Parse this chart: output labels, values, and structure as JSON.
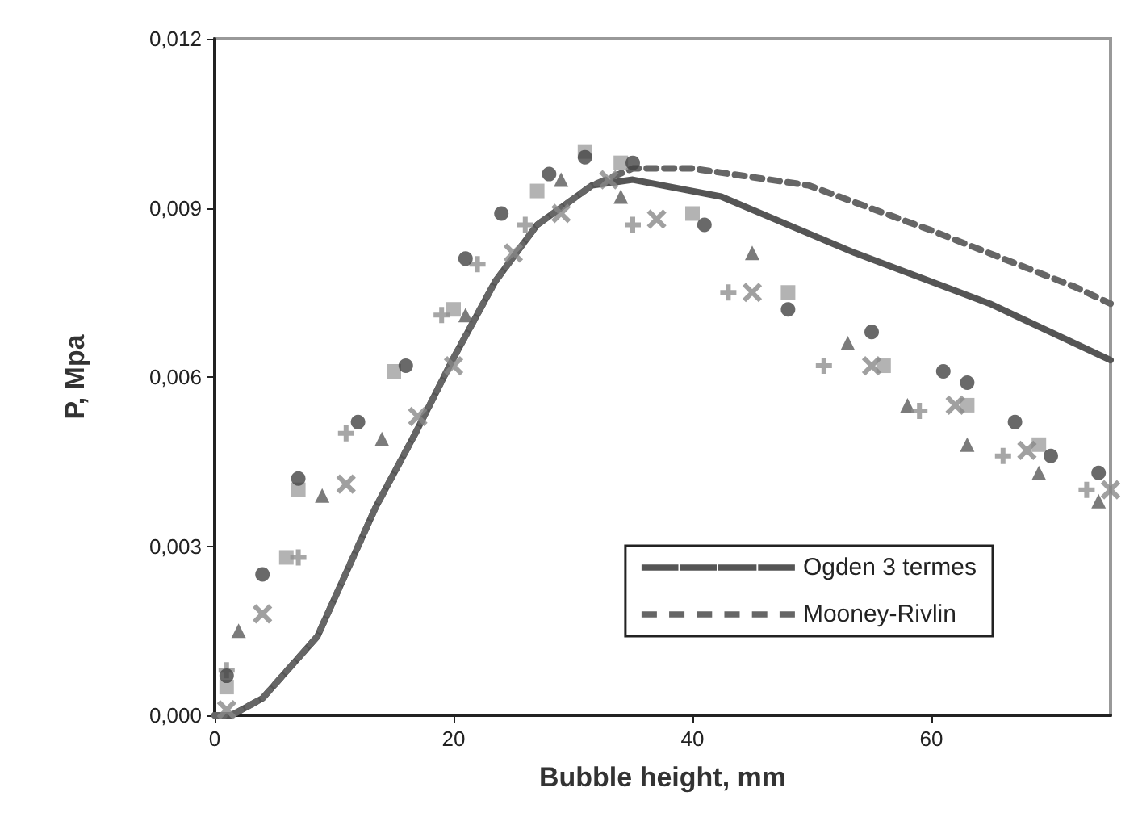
{
  "chart_data": {
    "type": "line",
    "xlabel": "Bubble height, mm",
    "ylabel": "P, Mpa",
    "xlim": [
      0,
      75
    ],
    "xticks": [
      0,
      20,
      40,
      60
    ],
    "ylim": [
      0,
      0.012
    ],
    "yticks": [
      {
        "value": 0,
        "label": "0,000"
      },
      {
        "value": 0.003,
        "label": "0,003"
      },
      {
        "value": 0.006,
        "label": "0,006"
      },
      {
        "value": 0.009,
        "label": "0,009"
      },
      {
        "value": 0.012,
        "label": "0,012"
      }
    ],
    "grid": false,
    "legend": "bottom right",
    "series": [
      {
        "name": "Ogden 3 termes",
        "line_style": "solid",
        "marker": "none",
        "color": "#555555",
        "x": [
          0,
          1.4,
          4,
          8.6,
          13.5,
          16.8,
          19.9,
          23.5,
          27,
          31.6,
          35,
          42.4,
          53.6,
          64.9,
          75
        ],
        "values": [
          0,
          0,
          0.0003,
          0.0014,
          0.0037,
          0.005,
          0.0063,
          0.0077,
          0.0087,
          0.0094,
          0.0095,
          0.0092,
          0.0082,
          0.0073,
          0.0063
        ]
      },
      {
        "name": "Mooney-Rivlin",
        "line_style": "dashed",
        "marker": "none",
        "color": "#666666",
        "x": [
          0,
          1.4,
          4,
          8.6,
          13.5,
          16.8,
          19.9,
          23.5,
          27,
          31.6,
          35,
          40,
          49.7,
          60,
          72,
          75
        ],
        "values": [
          0,
          0,
          0.0003,
          0.0014,
          0.0037,
          0.005,
          0.0063,
          0.0077,
          0.0087,
          0.0094,
          0.0097,
          0.0097,
          0.0094,
          0.0086,
          0.0076,
          0.0073
        ]
      },
      {
        "type": "scatter",
        "marker": "circle",
        "color": "#444444",
        "x": [
          1,
          4,
          7,
          12,
          16,
          21,
          24,
          28,
          31,
          35,
          41,
          48,
          55,
          61,
          63,
          67,
          70,
          74
        ],
        "values": [
          0.0007,
          0.0025,
          0.0042,
          0.0052,
          0.0062,
          0.0081,
          0.0089,
          0.0096,
          0.0099,
          0.0098,
          0.0087,
          0.0072,
          0.0068,
          0.0061,
          0.0059,
          0.0052,
          0.0046,
          0.0043
        ]
      },
      {
        "type": "scatter",
        "marker": "square",
        "color": "#a0a0a0",
        "x": [
          1,
          6,
          7,
          15,
          20,
          27,
          31,
          34,
          40,
          48,
          56,
          63,
          69
        ],
        "values": [
          0.0005,
          0.0028,
          0.004,
          0.0061,
          0.0072,
          0.0093,
          0.01,
          0.0098,
          0.0089,
          0.0075,
          0.0062,
          0.0055,
          0.0048
        ]
      },
      {
        "type": "scatter",
        "marker": "cross",
        "color": "#909090",
        "x": [
          1,
          7,
          11,
          19,
          22,
          26,
          35,
          43,
          51,
          59,
          66,
          73
        ],
        "values": [
          0.0008,
          0.0028,
          0.005,
          0.0071,
          0.008,
          0.0087,
          0.0087,
          0.0075,
          0.0062,
          0.0054,
          0.0046,
          0.004
        ]
      },
      {
        "type": "scatter",
        "color": "#888888",
        "x": [
          1,
          4,
          11,
          17,
          20,
          25,
          29,
          33,
          37,
          45,
          55,
          62,
          68,
          75
        ],
        "values": [
          0.0001,
          0.0018,
          0.0041,
          0.0053,
          0.0062,
          0.0082,
          0.0089,
          0.0095,
          0.0088,
          0.0075,
          0.0062,
          0.0055,
          0.0047,
          0.004
        ]
      },
      {
        "type": "scatter",
        "marker": "triangle",
        "color": "#5a5a5a",
        "x": [
          2,
          9,
          14,
          21,
          29,
          34,
          45,
          53,
          58,
          63,
          69,
          74
        ],
        "values": [
          0.0015,
          0.0039,
          0.0049,
          0.0071,
          0.0095,
          0.0092,
          0.0082,
          0.0066,
          0.0055,
          0.0048,
          0.0043,
          0.0038
        ]
      }
    ]
  }
}
